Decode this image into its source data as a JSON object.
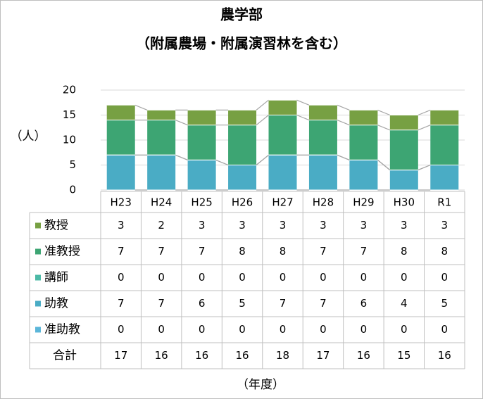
{
  "chart_data": {
    "type": "bar",
    "stacked": true,
    "title": "農学部",
    "subtitle": "（附属農場・附属演習林を含む）",
    "ylabel": "（人）",
    "xlabel": "（年度）",
    "categories": [
      "H23",
      "H24",
      "H25",
      "H26",
      "H27",
      "H28",
      "H29",
      "H30",
      "R1"
    ],
    "series": [
      {
        "name": "教授",
        "color": "#77a043",
        "values": [
          3,
          2,
          3,
          3,
          3,
          3,
          3,
          3,
          3
        ]
      },
      {
        "name": "准教授",
        "color": "#3da573",
        "values": [
          7,
          7,
          7,
          8,
          8,
          7,
          7,
          8,
          8
        ]
      },
      {
        "name": "講師",
        "color": "#4cb9a6",
        "values": [
          0,
          0,
          0,
          0,
          0,
          0,
          0,
          0,
          0
        ]
      },
      {
        "name": "助教",
        "color": "#4aacc5",
        "values": [
          7,
          7,
          6,
          5,
          7,
          7,
          6,
          4,
          5
        ]
      },
      {
        "name": "准助教",
        "color": "#5bb6d9",
        "values": [
          0,
          0,
          0,
          0,
          0,
          0,
          0,
          0,
          0
        ]
      }
    ],
    "totals_label": "合計",
    "totals": [
      17,
      16,
      16,
      16,
      18,
      17,
      16,
      15,
      16
    ],
    "ylim": [
      0,
      20
    ],
    "yticks": [
      0,
      5,
      10,
      15,
      20
    ],
    "grid": true
  }
}
